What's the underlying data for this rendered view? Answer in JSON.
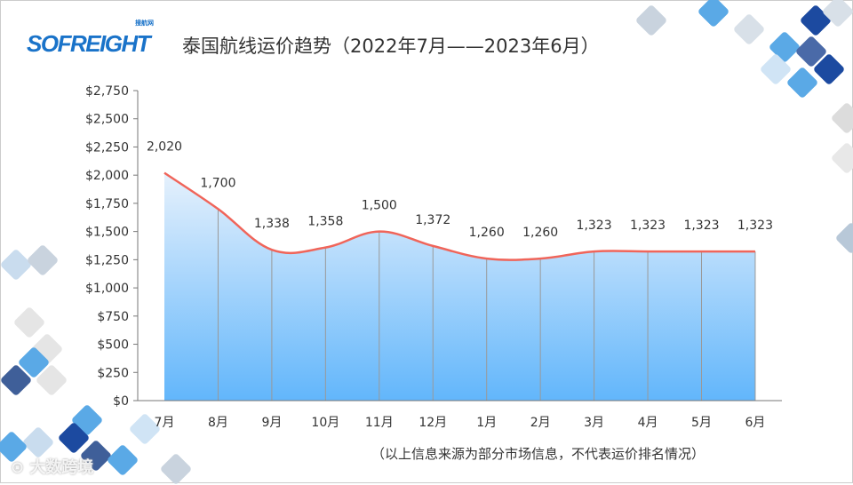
{
  "logo": {
    "text": "SOFREIGHT",
    "sub": "搜航网"
  },
  "watermark": "大数跨境",
  "footnote": "（以上信息来源为部分市场信息，不代表运价排名情况）",
  "chart_data": {
    "type": "area",
    "title": "泰国航线运价趋势（2022年7月——2023年6月）",
    "categories": [
      "7月",
      "8月",
      "9月",
      "10月",
      "11月",
      "12月",
      "1月",
      "2月",
      "3月",
      "4月",
      "5月",
      "6月"
    ],
    "values": [
      2020,
      1700,
      1338,
      1358,
      1500,
      1372,
      1260,
      1260,
      1323,
      1323,
      1323,
      1323
    ],
    "data_labels": [
      "2,020",
      "1,700",
      "1,338",
      "1,358",
      "1,500",
      "1,372",
      "1,260",
      "1,260",
      "1,323",
      "1,323",
      "1,323",
      "1,323"
    ],
    "ylim": [
      0,
      2750
    ],
    "yticks": [
      0,
      250,
      500,
      750,
      1000,
      1250,
      1500,
      1750,
      2000,
      2250,
      2500,
      2750
    ],
    "ytick_labels": [
      "$0",
      "$250",
      "$500",
      "$750",
      "$1,000",
      "$1,250",
      "$1,500",
      "$1,750",
      "$2,000",
      "$2,250",
      "$2,500",
      "$2,750"
    ],
    "line_color": "#f0655a",
    "fill_top": "#e6f1fc",
    "fill_bottom": "#62b6fb",
    "grid": false
  }
}
